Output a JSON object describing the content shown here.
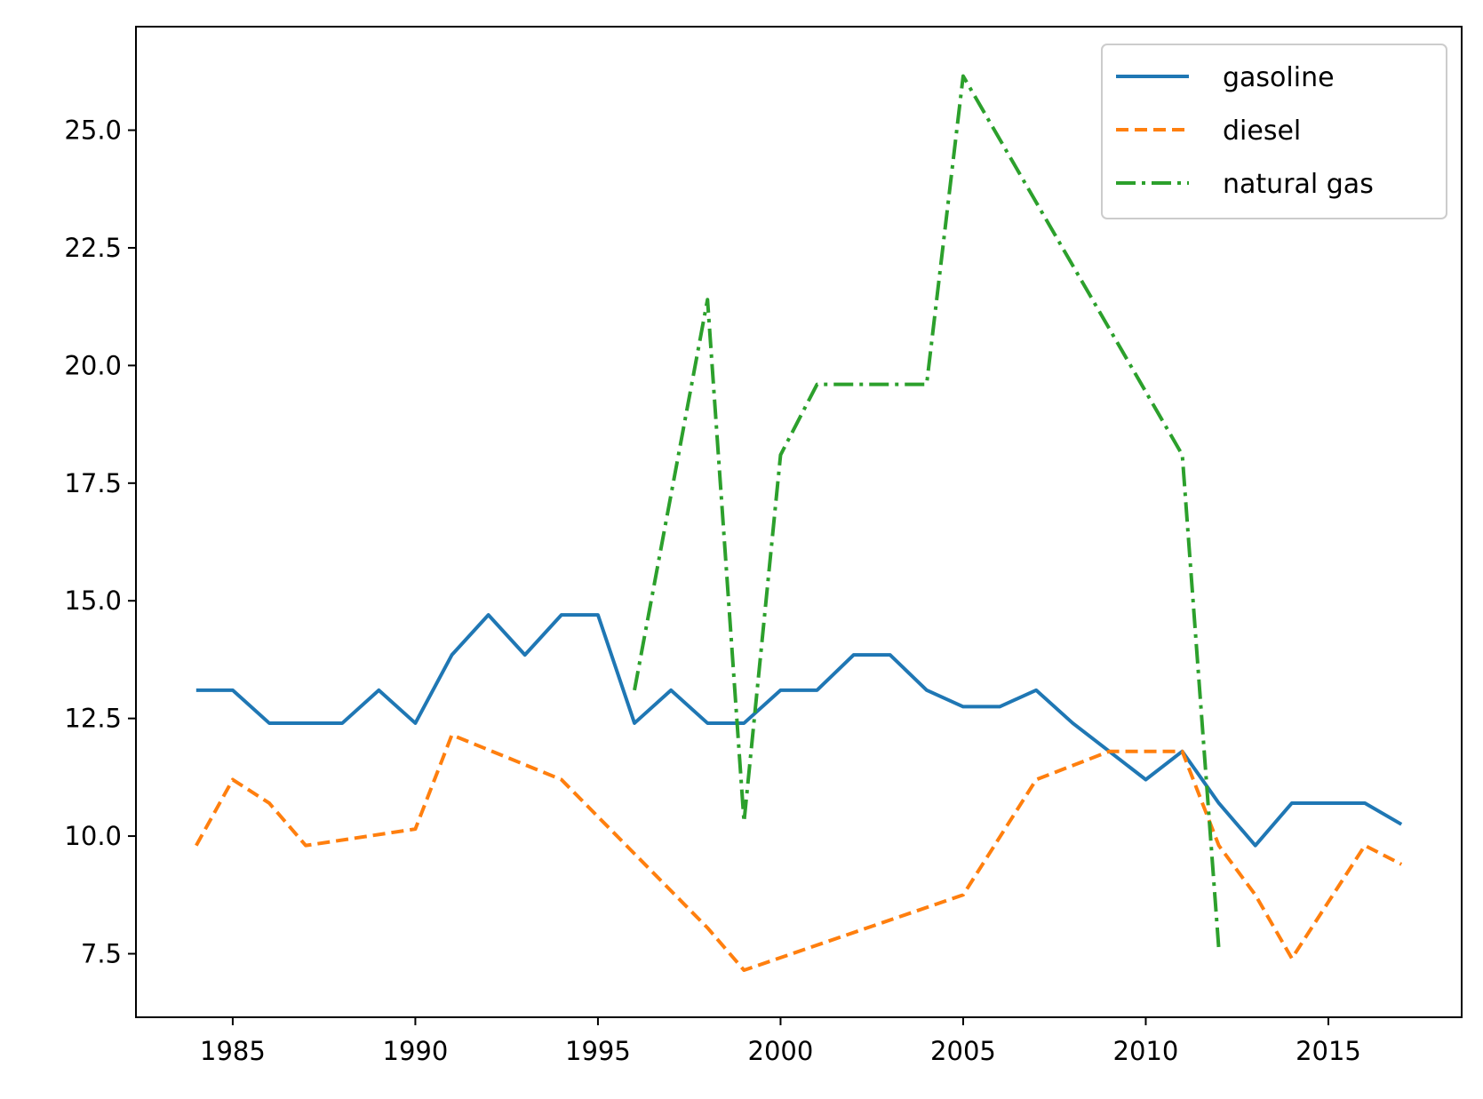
{
  "chart_data": {
    "type": "line",
    "title": "",
    "xlabel": "",
    "ylabel": "",
    "xlim": [
      1982.35,
      2018.65
    ],
    "ylim": [
      6.15,
      27.2
    ],
    "x_ticks": [
      1985,
      1990,
      1995,
      2000,
      2005,
      2010,
      2015
    ],
    "y_ticks": [
      7.5,
      10.0,
      12.5,
      15.0,
      17.5,
      20.0,
      22.5,
      25.0
    ],
    "x_tick_labels": [
      "1985",
      "1990",
      "1995",
      "2000",
      "2005",
      "2010",
      "2015"
    ],
    "y_tick_labels": [
      "7.5",
      "10.0",
      "12.5",
      "15.0",
      "17.5",
      "20.0",
      "22.5",
      "25.0"
    ],
    "grid": false,
    "legend_position": "top-right",
    "series": [
      {
        "name": "gasoline",
        "color": "#1f77b4",
        "style": "solid",
        "x": [
          1984,
          1985,
          1986,
          1987,
          1988,
          1989,
          1990,
          1991,
          1992,
          1993,
          1994,
          1995,
          1996,
          1997,
          1998,
          1999,
          2000,
          2001,
          2002,
          2003,
          2004,
          2005,
          2006,
          2007,
          2008,
          2009,
          2010,
          2011,
          2012,
          2013,
          2014,
          2015,
          2016,
          2017
        ],
        "values": [
          13.1,
          13.1,
          12.4,
          12.4,
          12.4,
          13.1,
          12.4,
          13.85,
          14.7,
          13.85,
          14.7,
          14.7,
          12.4,
          13.1,
          12.4,
          12.4,
          13.1,
          13.1,
          13.85,
          13.85,
          13.1,
          12.75,
          12.75,
          13.1,
          12.4,
          11.8,
          11.2,
          11.8,
          10.7,
          9.8,
          10.7,
          10.7,
          10.7,
          10.25
        ]
      },
      {
        "name": "diesel",
        "color": "#ff7f0e",
        "style": "dashed",
        "x": [
          1984,
          1985,
          1986,
          1987,
          1990,
          1991,
          1994,
          1998,
          1999,
          2005,
          2007,
          2009,
          2011,
          2012,
          2013,
          2014,
          2016,
          2017
        ],
        "values": [
          9.8,
          11.2,
          10.7,
          9.8,
          10.15,
          12.15,
          11.2,
          8.05,
          7.15,
          8.75,
          11.2,
          11.8,
          11.8,
          9.8,
          8.75,
          7.4,
          9.8,
          9.4
        ]
      },
      {
        "name": "natural gas",
        "color": "#2ca02c",
        "style": "dashdot",
        "x": [
          1996,
          1998,
          1999,
          2000,
          2001,
          2004,
          2005,
          2011,
          2012
        ],
        "values": [
          13.1,
          21.4,
          10.3,
          18.1,
          19.6,
          19.6,
          26.15,
          18.1,
          7.6
        ]
      }
    ]
  }
}
